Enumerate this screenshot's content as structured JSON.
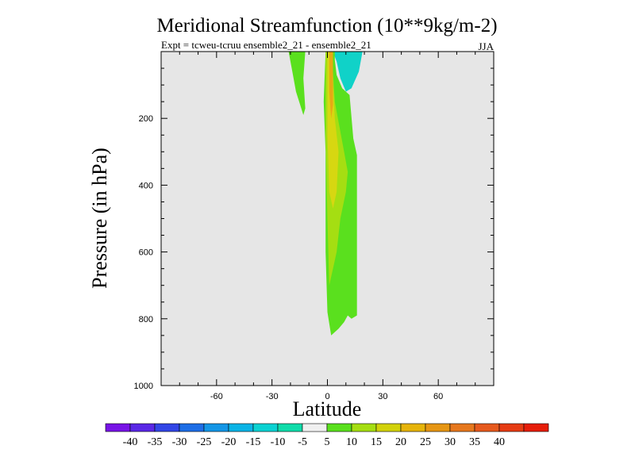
{
  "chart_data": {
    "type": "contour",
    "title": "Meridional Streamfunction (10**9kg/m-2)",
    "subtitle": "Expt = tcweu-tcruu ensemble2_21 - ensemble2_21",
    "season": "JJA",
    "xlabel": "Latitude",
    "ylabel": "Pressure (in hPa)",
    "xlim": [
      -90,
      90
    ],
    "ylim": [
      1000,
      0
    ],
    "x_ticks": [
      -60,
      -30,
      0,
      30,
      60
    ],
    "x_tick_labels": [
      "-60",
      "-30",
      "0",
      "30",
      "60"
    ],
    "y_ticks": [
      200,
      400,
      600,
      800,
      1000
    ],
    "y_tick_labels": [
      "200",
      "400",
      "600",
      "800",
      "1000"
    ],
    "background_color": "#e6e6e6",
    "regions": [
      {
        "name": "green-upper-left",
        "level": "5 to 10",
        "color": "#5ae01e",
        "points": [
          [
            -21,
            0
          ],
          [
            -12,
            0
          ],
          [
            -13,
            80
          ],
          [
            -12,
            170
          ],
          [
            -13,
            190
          ],
          [
            -17,
            120
          ],
          [
            -19,
            60
          ]
        ]
      },
      {
        "name": "cyan-upper",
        "level": "-10 to -5",
        "color": "#10d2c8",
        "points": [
          [
            3,
            0
          ],
          [
            19,
            0
          ],
          [
            17,
            60
          ],
          [
            13,
            110
          ],
          [
            10,
            120
          ],
          [
            7,
            80
          ],
          [
            5,
            30
          ]
        ]
      },
      {
        "name": "green-main",
        "level": "5 to 10",
        "color": "#5ae01e",
        "points": [
          [
            -1,
            0
          ],
          [
            4,
            0
          ],
          [
            4,
            25
          ],
          [
            5,
            70
          ],
          [
            8,
            110
          ],
          [
            12,
            130
          ],
          [
            14,
            260
          ],
          [
            16,
            310
          ],
          [
            16,
            520
          ],
          [
            16,
            750
          ],
          [
            16,
            790
          ],
          [
            13,
            800
          ],
          [
            11,
            790
          ],
          [
            9,
            810
          ],
          [
            6,
            830
          ],
          [
            2,
            850
          ],
          [
            0,
            780
          ],
          [
            -1,
            600
          ],
          [
            -1,
            300
          ],
          [
            -2,
            150
          ]
        ]
      },
      {
        "name": "yellowgreen-core",
        "level": "10 to 15",
        "color": "#a5de12",
        "points": [
          [
            -1,
            0
          ],
          [
            3,
            0
          ],
          [
            3,
            60
          ],
          [
            4,
            150
          ],
          [
            7,
            240
          ],
          [
            9,
            300
          ],
          [
            11,
            360
          ],
          [
            10,
            420
          ],
          [
            7,
            500
          ],
          [
            5,
            600
          ],
          [
            3,
            650
          ],
          [
            1,
            700
          ],
          [
            0,
            500
          ],
          [
            -1,
            250
          ]
        ]
      },
      {
        "name": "yellow-core",
        "level": "15 to 20",
        "color": "#d7d711",
        "points": [
          [
            0,
            0
          ],
          [
            3,
            0
          ],
          [
            3,
            100
          ],
          [
            4,
            200
          ],
          [
            6,
            300
          ],
          [
            5,
            420
          ],
          [
            3,
            470
          ],
          [
            1,
            420
          ],
          [
            0,
            250
          ]
        ]
      },
      {
        "name": "orange-core",
        "level": "20 to 25",
        "color": "#e6a914",
        "points": [
          [
            1,
            0
          ],
          [
            3,
            0
          ],
          [
            3,
            80
          ],
          [
            3,
            160
          ],
          [
            2,
            200
          ],
          [
            1,
            120
          ]
        ]
      }
    ],
    "colorbar": {
      "colors": [
        "#7814e6",
        "#5a28e6",
        "#3246e6",
        "#1e6ee6",
        "#1496e6",
        "#0ab4e6",
        "#0ad2d2",
        "#10dcaa",
        "#f0f0f0",
        "#5ae01e",
        "#a5de12",
        "#d2d20a",
        "#e6b40a",
        "#e69614",
        "#e6781e",
        "#e65a1e",
        "#e63c14",
        "#e61e0a"
      ],
      "labels": [
        "-40",
        "-35",
        "-30",
        "-25",
        "-20",
        "-15",
        "-10",
        "-5",
        "5",
        "10",
        "15",
        "20",
        "25",
        "30",
        "35",
        "40"
      ]
    }
  }
}
